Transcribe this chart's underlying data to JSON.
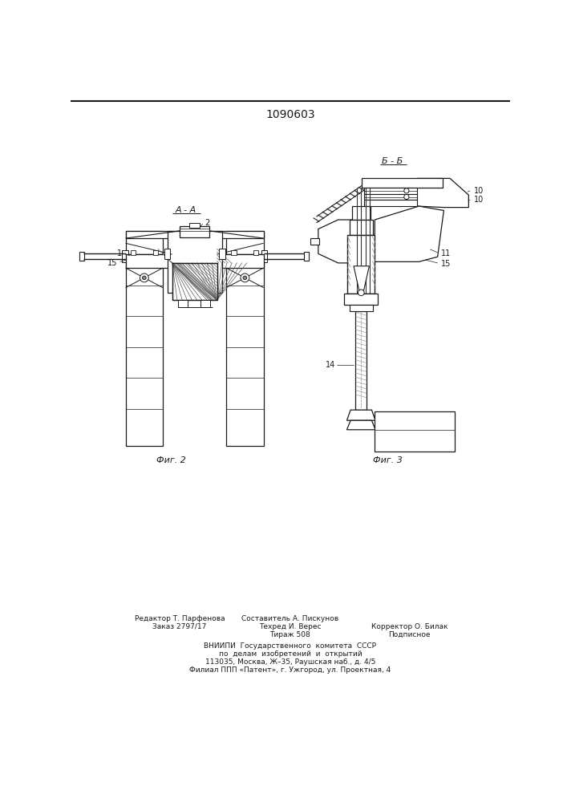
{
  "title": "1090603",
  "bg_color": "#ffffff",
  "fig_label_AA": "A - A",
  "fig_label_BB": "Б - Б",
  "fig2_caption": "Фиг. 2",
  "fig3_caption": "Фиг. 3",
  "line_color": "#1a1a1a",
  "footer": {
    "col1_line1": "Редактор Т. Парфенова",
    "col1_line2": "Заказ 2797/17",
    "col2_line0": "Составитель А. Пискунов",
    "col2_line1": "Техред И. Верес",
    "col2_line2": "Тираж 508",
    "col3_line1": "Корректор О. Билак",
    "col3_line2": "Подписное",
    "vniipи1": "ВНИИПИ  Государственного  комитета  СССР",
    "vniipи2": "по  делам  изобретений  и  открытий",
    "vniipи3": "113035, Москва, Ж–35, Раушская наб., д. 4/5",
    "vniipи4": "Филиал ППП «Патент», г. Ужгород, ул. Проектная, 4"
  }
}
